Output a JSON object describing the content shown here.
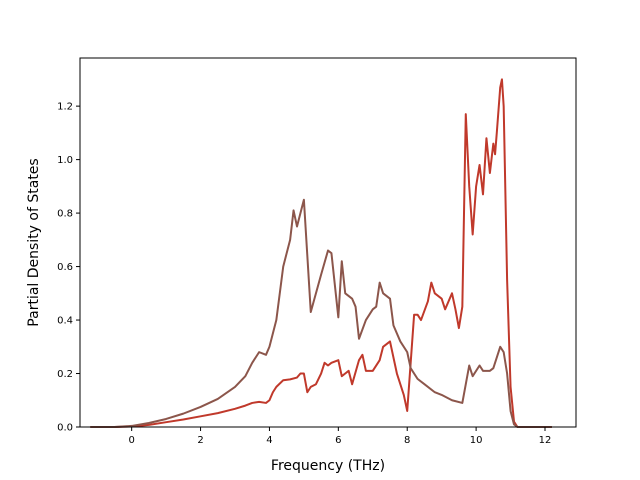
{
  "chart_data": {
    "type": "line",
    "title": "",
    "xlabel": "Frequency (THz)",
    "ylabel": "Partial Density of States",
    "xlim": [
      -1.5,
      12.9
    ],
    "ylim": [
      0.0,
      1.38
    ],
    "xticks": [
      0,
      2,
      4,
      6,
      8,
      10,
      12
    ],
    "xtick_labels": [
      "0",
      "2",
      "4",
      "6",
      "8",
      "10",
      "12"
    ],
    "yticks": [
      0.0,
      0.2,
      0.4,
      0.6,
      0.8,
      1.0,
      1.2
    ],
    "ytick_labels": [
      "0.0",
      "0.2",
      "0.4",
      "0.6",
      "0.8",
      "1.0",
      "1.2"
    ],
    "grid": false,
    "legend": "none",
    "series": [
      {
        "color": "#c0392b",
        "x": [
          -1.2,
          -0.5,
          0.0,
          0.5,
          1.0,
          1.5,
          2.0,
          2.5,
          3.0,
          3.3,
          3.5,
          3.7,
          3.9,
          4.0,
          4.1,
          4.2,
          4.4,
          4.6,
          4.8,
          4.9,
          5.0,
          5.1,
          5.2,
          5.35,
          5.5,
          5.6,
          5.7,
          5.8,
          6.0,
          6.1,
          6.2,
          6.3,
          6.4,
          6.6,
          6.7,
          6.8,
          7.0,
          7.2,
          7.3,
          7.5,
          7.7,
          7.9,
          8.0,
          8.2,
          8.3,
          8.4,
          8.6,
          8.7,
          8.8,
          9.0,
          9.1,
          9.3,
          9.4,
          9.5,
          9.6,
          9.7,
          9.8,
          9.9,
          10.0,
          10.1,
          10.2,
          10.3,
          10.4,
          10.5,
          10.55,
          10.6,
          10.7,
          10.75,
          10.8,
          10.9,
          11.0,
          11.1,
          11.2,
          11.5,
          12.2
        ],
        "y": [
          0.0,
          0.0,
          0.002,
          0.008,
          0.018,
          0.028,
          0.04,
          0.052,
          0.068,
          0.08,
          0.09,
          0.094,
          0.09,
          0.1,
          0.13,
          0.15,
          0.175,
          0.178,
          0.185,
          0.2,
          0.2,
          0.13,
          0.15,
          0.16,
          0.2,
          0.24,
          0.23,
          0.24,
          0.25,
          0.19,
          0.2,
          0.21,
          0.16,
          0.25,
          0.27,
          0.21,
          0.21,
          0.25,
          0.3,
          0.32,
          0.2,
          0.12,
          0.06,
          0.42,
          0.42,
          0.4,
          0.47,
          0.54,
          0.5,
          0.48,
          0.44,
          0.5,
          0.44,
          0.37,
          0.45,
          1.17,
          0.9,
          0.72,
          0.9,
          0.98,
          0.87,
          1.08,
          0.95,
          1.06,
          1.02,
          1.1,
          1.27,
          1.3,
          1.2,
          0.55,
          0.15,
          0.02,
          0.0,
          0.0,
          0.0
        ]
      },
      {
        "color": "#8c564b",
        "x": [
          -1.2,
          -0.5,
          0.0,
          0.5,
          1.0,
          1.5,
          2.0,
          2.5,
          3.0,
          3.3,
          3.5,
          3.7,
          3.9,
          4.0,
          4.2,
          4.4,
          4.6,
          4.7,
          4.8,
          4.9,
          5.0,
          5.2,
          5.5,
          5.7,
          5.8,
          6.0,
          6.1,
          6.2,
          6.4,
          6.5,
          6.6,
          6.8,
          7.0,
          7.1,
          7.2,
          7.3,
          7.5,
          7.6,
          7.8,
          8.0,
          8.1,
          8.3,
          8.5,
          8.8,
          9.0,
          9.3,
          9.6,
          9.8,
          9.9,
          10.1,
          10.2,
          10.4,
          10.5,
          10.7,
          10.8,
          10.9,
          11.0,
          11.1,
          11.2,
          11.5,
          12.2
        ],
        "y": [
          0.0,
          0.0,
          0.004,
          0.015,
          0.03,
          0.05,
          0.075,
          0.105,
          0.15,
          0.19,
          0.24,
          0.28,
          0.27,
          0.3,
          0.4,
          0.6,
          0.7,
          0.81,
          0.75,
          0.8,
          0.85,
          0.43,
          0.57,
          0.66,
          0.65,
          0.41,
          0.62,
          0.5,
          0.48,
          0.45,
          0.33,
          0.4,
          0.44,
          0.45,
          0.54,
          0.5,
          0.48,
          0.38,
          0.32,
          0.28,
          0.22,
          0.18,
          0.16,
          0.13,
          0.12,
          0.1,
          0.09,
          0.23,
          0.19,
          0.23,
          0.21,
          0.21,
          0.22,
          0.3,
          0.28,
          0.2,
          0.06,
          0.01,
          0.0,
          0.0,
          0.0
        ]
      }
    ]
  }
}
